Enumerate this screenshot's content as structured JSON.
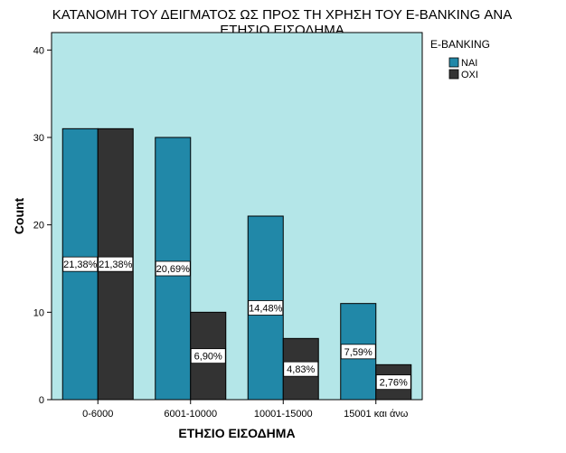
{
  "chart_data": {
    "type": "bar",
    "title": "ΚΑΤΑΝΟΜΗ ΤΟΥ ΔΕΙΓΜΑΤΟΣ ΩΣ ΠΡΟΣ ΤΗ ΧΡΗΣΗ ΤΟΥ E-BANKING ΑΝΑ ΕΤΗΣΙΟ ΕΙΣΟΔΗΜΑ",
    "title_line1": "ΚΑΤΑΝΟΜΗ ΤΟΥ ΔΕΙΓΜΑΤΟΣ ΩΣ ΠΡΟΣ ΤΗ ΧΡΗΣΗ ΤΟΥ E-BANKING ΑΝΑ",
    "title_line2": "ΕΤΗΣΙΟ ΕΙΣΟΔΗΜΑ",
    "xlabel": "ΕΤΗΣΙΟ ΕΙΣΟΔΗΜΑ",
    "ylabel": "Count",
    "ylim": [
      0,
      42
    ],
    "yticks": [
      0,
      10,
      20,
      30,
      40
    ],
    "categories": [
      "0-6000",
      "6001-10000",
      "10001-15000",
      "15001 και άνω"
    ],
    "legend_title": "E-BANKING",
    "legend_placement": "right",
    "series": [
      {
        "name": "ΝΑΙ",
        "color": "#2188a8",
        "values": [
          31,
          30,
          21,
          11
        ],
        "labels": [
          "21,38%",
          "20,69%",
          "14,48%",
          "7,59%"
        ]
      },
      {
        "name": "ΟΧΙ",
        "color": "#333333",
        "values": [
          31,
          10,
          7,
          4
        ],
        "labels": [
          "21,38%",
          "6,90%",
          "4,83%",
          "2,76%"
        ]
      }
    ],
    "plot_background": "#b4e6e8"
  }
}
